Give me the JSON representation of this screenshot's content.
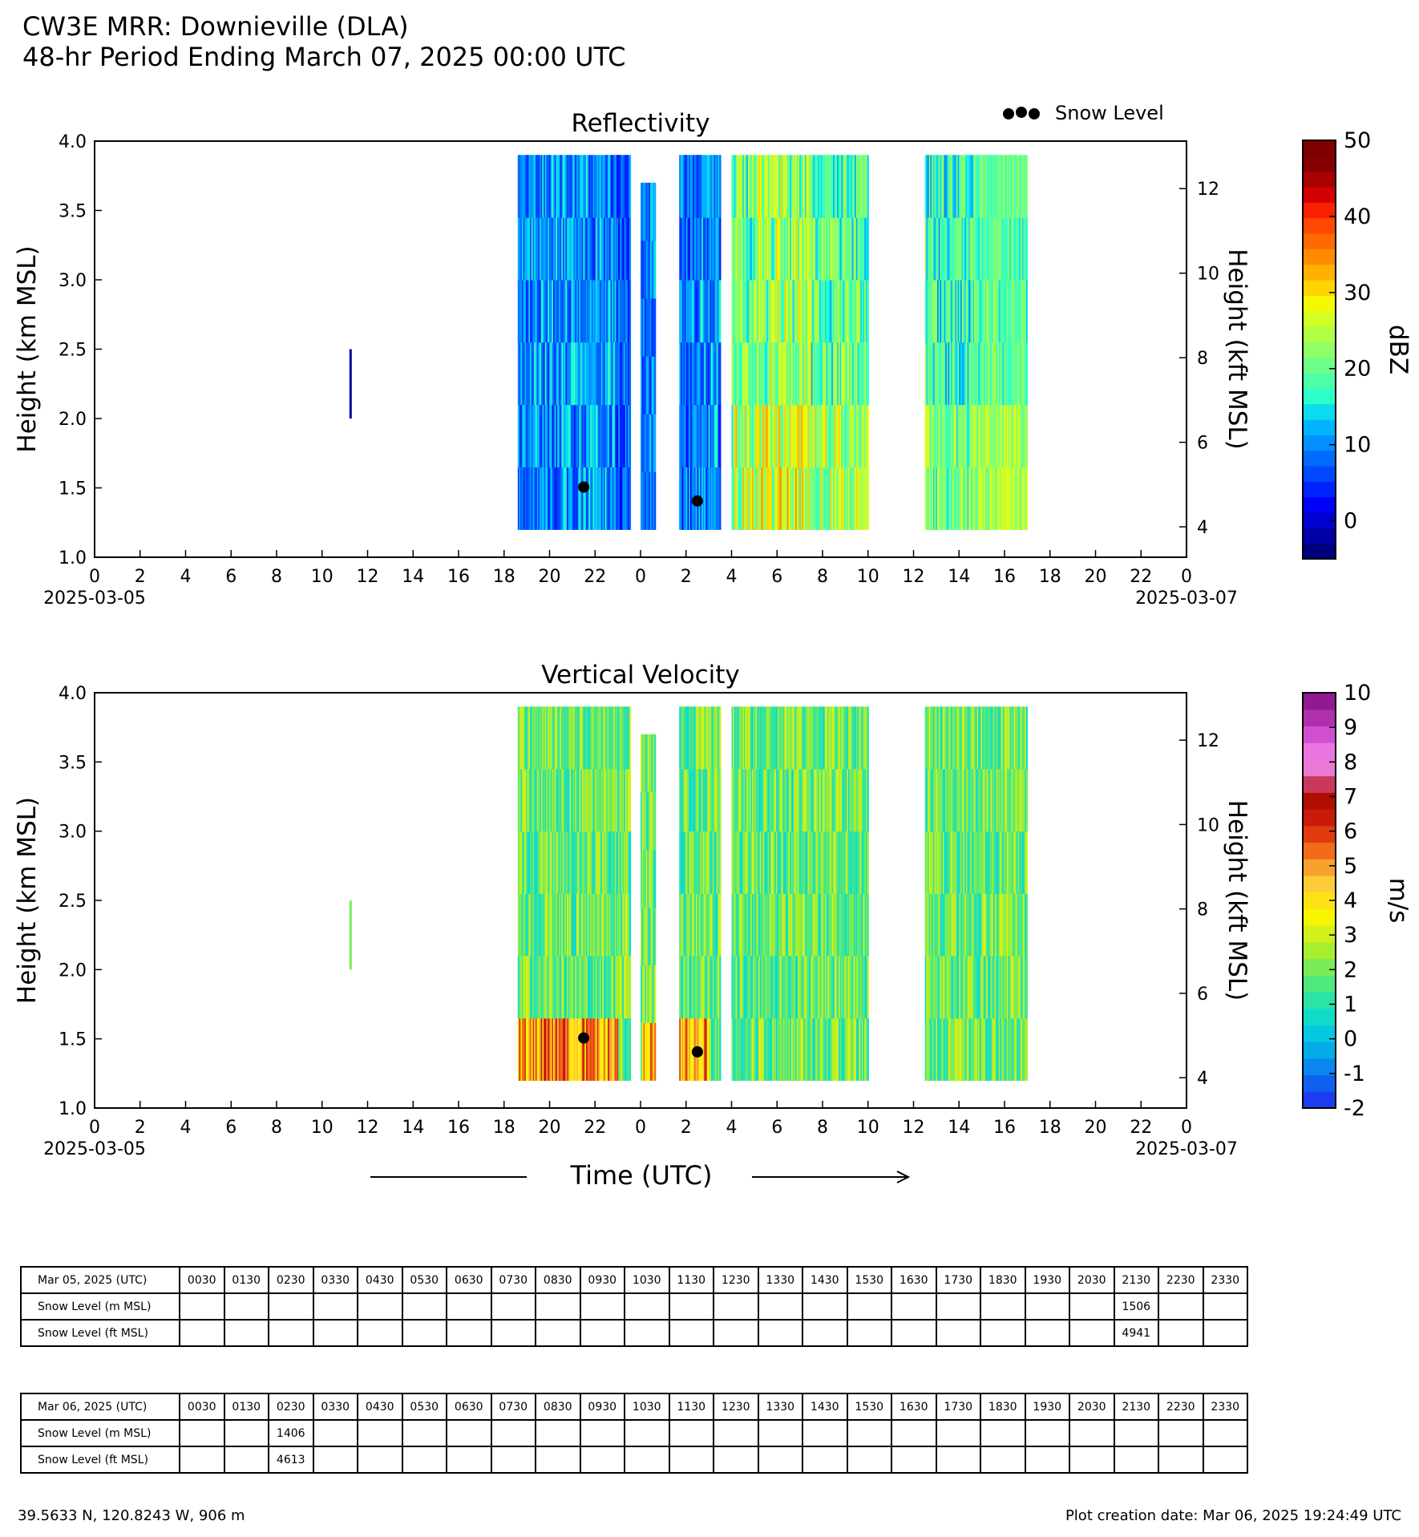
{
  "header": {
    "title_line1": "CW3E MRR: Downieville (DLA)",
    "title_line2": "48-hr Period Ending March 07, 2025 00:00 UTC"
  },
  "legend": {
    "marker": "●●●",
    "label": "Snow Level"
  },
  "chart_data": [
    {
      "type": "heatmap",
      "title": "Reflectivity",
      "ylabel": "Height (km MSL)",
      "ylabel_right": "Height (kft MSL)",
      "colorbar_label": "dBZ",
      "ylim": [
        1.0,
        4.0
      ],
      "yticks": [
        "1.0",
        "1.5",
        "2.0",
        "2.5",
        "3.0",
        "3.5",
        "4.0"
      ],
      "yticks_right": [
        "4",
        "6",
        "8",
        "10",
        "12"
      ],
      "xlim_hours": [
        0,
        48
      ],
      "xtick_labels": [
        "0",
        "2",
        "4",
        "6",
        "8",
        "10",
        "12",
        "14",
        "16",
        "18",
        "20",
        "22",
        "0",
        "2",
        "4",
        "6",
        "8",
        "10",
        "12",
        "14",
        "16",
        "18",
        "20",
        "22",
        "0"
      ],
      "date_labels": [
        "2025-03-05",
        "2025-03-07"
      ],
      "colorbar": {
        "min": -5,
        "max": 50,
        "step": 2.5,
        "tick_labels": [
          "0",
          "10",
          "20",
          "30",
          "40",
          "50"
        ],
        "colors": [
          "#00007f",
          "#0000a6",
          "#0000d0",
          "#0000fa",
          "#0022ff",
          "#0048ff",
          "#006cff",
          "#0090ff",
          "#00b4ff",
          "#0cdced",
          "#2cffca",
          "#4dffa8",
          "#6eff88",
          "#90ff67",
          "#b0ff45",
          "#d3ff24",
          "#f4f802",
          "#ffd200",
          "#ffb000",
          "#ff8c00",
          "#ff6a00",
          "#ff4800",
          "#fa2000",
          "#d30000",
          "#ab0000",
          "#860000",
          "#7f0000"
        ]
      },
      "snow_level_points": [
        {
          "hour": 21.5,
          "km": 1.506
        },
        {
          "hour": 26.5,
          "km": 1.406
        }
      ]
    },
    {
      "type": "heatmap",
      "title": "Vertical Velocity",
      "ylabel": "Height (km MSL)",
      "ylabel_right": "Height (kft MSL)",
      "colorbar_label": "m/s",
      "ylim": [
        1.0,
        4.0
      ],
      "yticks": [
        "1.0",
        "1.5",
        "2.0",
        "2.5",
        "3.0",
        "3.5",
        "4.0"
      ],
      "yticks_right": [
        "4",
        "6",
        "8",
        "10",
        "12"
      ],
      "xlim_hours": [
        0,
        48
      ],
      "xtick_labels": [
        "0",
        "2",
        "4",
        "6",
        "8",
        "10",
        "12",
        "14",
        "16",
        "18",
        "20",
        "22",
        "0",
        "2",
        "4",
        "6",
        "8",
        "10",
        "12",
        "14",
        "16",
        "18",
        "20",
        "22",
        "0"
      ],
      "date_labels": [
        "2025-03-05",
        "2025-03-07"
      ],
      "colorbar": {
        "min": -2,
        "max": 10,
        "step": 0.5,
        "tick_labels": [
          "-2",
          "-1",
          "0",
          "1",
          "2",
          "3",
          "4",
          "5",
          "6",
          "7",
          "8",
          "9",
          "10"
        ],
        "colors": [
          "#1c3cf0",
          "#1060ef",
          "#0a86ef",
          "#04abe6",
          "#05c8e0",
          "#12dcc8",
          "#2ce3a8",
          "#50e97d",
          "#7aec5a",
          "#a8ee2e",
          "#d2f01c",
          "#f7f500",
          "#fde316",
          "#fdcc36",
          "#f7a22f",
          "#f26b1a",
          "#e03c10",
          "#c91a0a",
          "#b00f00",
          "#c8395a",
          "#e97ad6",
          "#ea74e0",
          "#cf50cf",
          "#b02fae",
          "#8f1a91"
        ]
      },
      "snow_level_points": [
        {
          "hour": 21.5,
          "km": 1.506
        },
        {
          "hour": 26.5,
          "km": 1.406
        }
      ]
    }
  ],
  "xaxis_label": "Time (UTC)",
  "tables": [
    {
      "header": "Mar 05, 2025 (UTC)",
      "times": [
        "0030",
        "0130",
        "0230",
        "0330",
        "0430",
        "0530",
        "0630",
        "0730",
        "0830",
        "0930",
        "1030",
        "1130",
        "1230",
        "1330",
        "1430",
        "1530",
        "1630",
        "1730",
        "1830",
        "1930",
        "2030",
        "2130",
        "2230",
        "2330"
      ],
      "rows": [
        {
          "label": "Snow Level (m MSL)",
          "values": [
            "",
            "",
            "",
            "",
            "",
            "",
            "",
            "",
            "",
            "",
            "",
            "",
            "",
            "",
            "",
            "",
            "",
            "",
            "",
            "",
            "",
            "1506",
            "",
            ""
          ]
        },
        {
          "label": "Snow Level (ft MSL)",
          "values": [
            "",
            "",
            "",
            "",
            "",
            "",
            "",
            "",
            "",
            "",
            "",
            "",
            "",
            "",
            "",
            "",
            "",
            "",
            "",
            "",
            "",
            "4941",
            "",
            ""
          ]
        }
      ]
    },
    {
      "header": "Mar 06, 2025 (UTC)",
      "times": [
        "0030",
        "0130",
        "0230",
        "0330",
        "0430",
        "0530",
        "0630",
        "0730",
        "0830",
        "0930",
        "1030",
        "1130",
        "1230",
        "1330",
        "1430",
        "1530",
        "1630",
        "1730",
        "1830",
        "1930",
        "2030",
        "2130",
        "2230",
        "2330"
      ],
      "rows": [
        {
          "label": "Snow Level (m MSL)",
          "values": [
            "",
            "",
            "1406",
            "",
            "",
            "",
            "",
            "",
            "",
            "",
            "",
            "",
            "",
            "",
            "",
            "",
            "",
            "",
            "",
            "",
            "",
            "",
            "",
            ""
          ]
        },
        {
          "label": "Snow Level (ft MSL)",
          "values": [
            "",
            "",
            "4613",
            "",
            "",
            "",
            "",
            "",
            "",
            "",
            "",
            "",
            "",
            "",
            "",
            "",
            "",
            "",
            "",
            "",
            "",
            "",
            "",
            ""
          ]
        }
      ]
    }
  ],
  "footer": {
    "coords": "39.5633 N, 120.8243 W, 906 m",
    "created": "Plot creation date: Mar 06, 2025 19:24:49 UTC"
  }
}
